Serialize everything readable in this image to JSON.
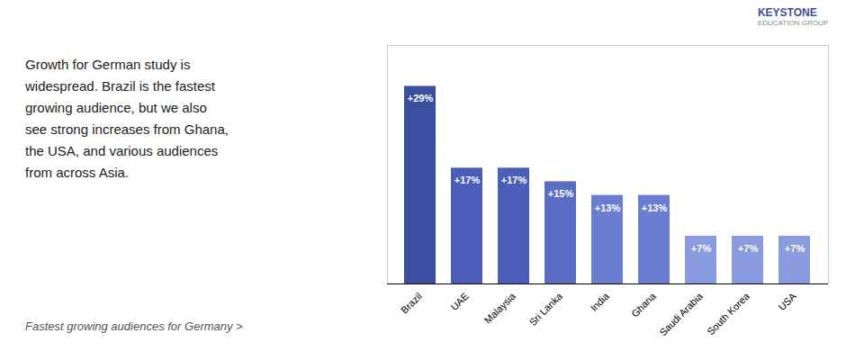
{
  "chart_data": {
    "type": "bar",
    "categories": [
      "Brazil",
      "UAE",
      "Malaysia",
      "Sri Lanka",
      "India",
      "Ghana",
      "Saudi Arabia",
      "South Korea",
      "USA"
    ],
    "values": [
      29,
      17,
      17,
      15,
      13,
      13,
      7,
      7,
      7
    ],
    "value_labels": [
      "+29%",
      "+17%",
      "+17%",
      "+15%",
      "+13%",
      "+13%",
      "+7%",
      "+7%",
      "+7%"
    ],
    "colors": [
      "#3A4FA0",
      "#4A5DB8",
      "#4A5DB8",
      "#5B6CC4",
      "#6B7DD0",
      "#6B7DD0",
      "#8A9ADE",
      "#8A9ADE",
      "#8A9ADE"
    ],
    "ylim": [
      0,
      35
    ],
    "data_labels": true,
    "tick_labels": "x",
    "grid": false,
    "annotations": [
      "Growth for German study is\nwidespread. Brazil is the fastest\ngrowing audience, but we also\nsee strong increases from Ghana,\nthe USA, and various audiences\nfrom across Asia.",
      "Fastest growing audiences for Germany >",
      "KEYSTONE",
      "EDUCATION GROUP"
    ]
  }
}
